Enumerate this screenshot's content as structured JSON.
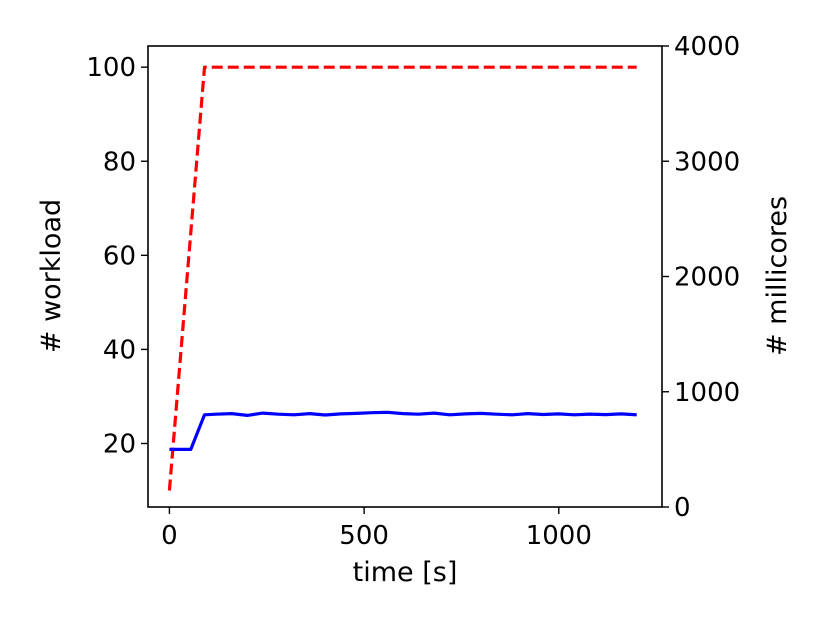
{
  "chart_data": {
    "type": "line",
    "title": "",
    "xlabel": "time [s]",
    "ylabel": "# workload",
    "y2label": "# millicores",
    "xlim": [
      -55,
      1265
    ],
    "ylim": [
      6.5,
      104.5
    ],
    "y2lim": [
      0,
      4000
    ],
    "xticks": [
      0,
      500,
      1000
    ],
    "yticks": [
      20,
      40,
      60,
      80,
      100
    ],
    "y2ticks": [
      0,
      1000,
      2000,
      3000,
      4000
    ],
    "grid": false,
    "legend": "none",
    "series": [
      {
        "axis": "left",
        "color": "#ff0000",
        "style": "dashed",
        "x": [
          0,
          90,
          1200
        ],
        "y": [
          10,
          100,
          100
        ]
      },
      {
        "axis": "right",
        "color": "#0000ff",
        "style": "solid",
        "x": [
          0,
          55,
          90,
          120,
          160,
          200,
          240,
          280,
          320,
          360,
          400,
          440,
          480,
          520,
          560,
          600,
          640,
          680,
          720,
          760,
          800,
          840,
          880,
          920,
          960,
          1000,
          1040,
          1080,
          1120,
          1160,
          1200
        ],
        "y": [
          500,
          500,
          800,
          805,
          810,
          795,
          815,
          805,
          800,
          810,
          798,
          808,
          812,
          818,
          822,
          810,
          805,
          815,
          800,
          808,
          812,
          805,
          800,
          810,
          803,
          808,
          800,
          806,
          802,
          808,
          800
        ]
      }
    ]
  }
}
